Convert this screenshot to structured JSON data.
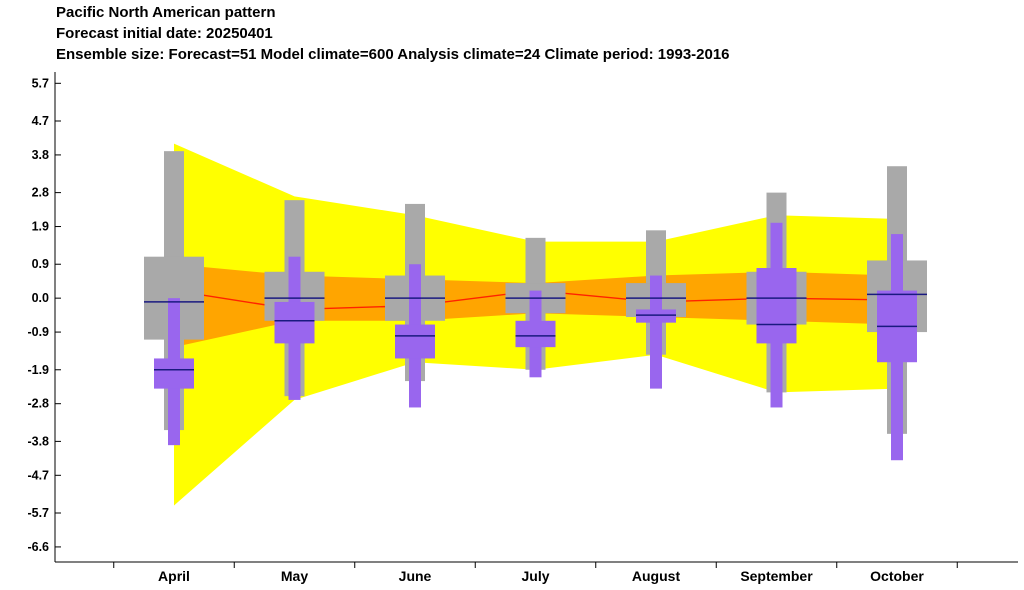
{
  "titles": {
    "line1": "Pacific North American pattern",
    "line2": " Forecast initial date: 20250401",
    "line3": "Ensemble size: Forecast=51 Model climate=600 Analysis climate=24   Climate period: 1993-2016"
  },
  "colors": {
    "outer_band": "#ffff00",
    "inner_band": "#ffa500",
    "climate_box": "#a9a9a9",
    "forecast_box": "#9966ee",
    "median_line": "#1a1a80",
    "climate_median_line": "#ff2200"
  },
  "chart_data": {
    "type": "box",
    "ylim": [
      -7.0,
      6.0
    ],
    "yticks": [
      5.7,
      4.7,
      3.8,
      2.8,
      1.9,
      0.9,
      0.0,
      -0.9,
      -1.9,
      -2.8,
      -3.8,
      -4.7,
      -5.7,
      -6.6
    ],
    "ytick_labels": [
      "5.7",
      "4.7",
      "3.8",
      "2.8",
      "1.9",
      "0.9",
      "0.0",
      "-0.9",
      "-1.9",
      "-2.8",
      "-3.8",
      "-4.7",
      "-5.7",
      "-6.6"
    ],
    "categories": [
      "April",
      "May",
      "June",
      "July",
      "August",
      "September",
      "October"
    ],
    "model_climate_band": {
      "outer_top": [
        4.1,
        2.7,
        2.2,
        1.5,
        1.5,
        2.2,
        2.1
      ],
      "outer_bottom": [
        -5.5,
        -2.7,
        -1.7,
        -1.9,
        -1.5,
        -2.5,
        -2.4
      ],
      "inner_top": [
        0.9,
        0.6,
        0.5,
        0.4,
        0.6,
        0.7,
        0.6
      ],
      "inner_bottom": [
        -1.3,
        -0.6,
        -0.6,
        -0.4,
        -0.5,
        -0.6,
        -0.7
      ],
      "median": [
        0.2,
        -0.3,
        -0.2,
        0.2,
        -0.1,
        0.0,
        -0.05
      ]
    },
    "analysis_climate": {
      "whisker_max": [
        3.9,
        2.6,
        2.5,
        1.6,
        1.8,
        2.8,
        3.5
      ],
      "q_upper": [
        1.1,
        0.7,
        0.6,
        0.4,
        0.4,
        0.7,
        1.0
      ],
      "median": [
        -0.1,
        0.0,
        0.0,
        0.0,
        0.0,
        0.0,
        0.1
      ],
      "q_lower": [
        -1.1,
        -0.6,
        -0.6,
        -0.4,
        -0.5,
        -0.7,
        -0.9
      ],
      "whisker_min": [
        -3.5,
        -2.6,
        -2.2,
        -1.9,
        -1.5,
        -2.5,
        -3.6
      ]
    },
    "forecast": {
      "whisker_max": [
        0.0,
        1.1,
        0.9,
        0.2,
        0.6,
        2.0,
        1.7
      ],
      "q_upper": [
        -1.6,
        -0.1,
        -0.7,
        -0.6,
        -0.3,
        0.8,
        0.2
      ],
      "median": [
        -1.9,
        -0.6,
        -1.0,
        -1.0,
        -0.45,
        -0.7,
        -0.75
      ],
      "q_lower": [
        -2.4,
        -1.2,
        -1.6,
        -1.3,
        -0.65,
        -1.2,
        -1.7
      ],
      "whisker_min": [
        -3.9,
        -2.7,
        -2.9,
        -2.1,
        -2.4,
        -2.9,
        -4.3
      ]
    }
  }
}
